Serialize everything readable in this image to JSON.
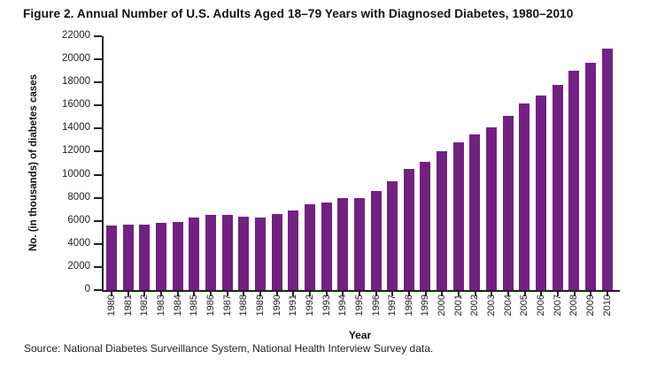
{
  "title": "Figure 2. Annual Number of U.S. Adults Aged 18–79 Years with Diagnosed Diabetes, 1980–2010",
  "source": "Source: National Diabetes Surveillance System, National Health Interview Survey data.",
  "colors": {
    "bar": "#722182",
    "axis": "#231f20",
    "background": "#ffffff"
  },
  "chart_data": {
    "type": "bar",
    "title": "Figure 2. Annual Number of U.S. Adults Aged 18–79 Years with Diagnosed Diabetes, 1980–2010",
    "xlabel": "Year",
    "ylabel": "No. (in thousands) of diabetes cases",
    "ylim": [
      0,
      22000
    ],
    "y_tick_step": 2000,
    "grid": false,
    "legend": "none",
    "categories": [
      "1980",
      "1981",
      "1982",
      "1983",
      "1984",
      "1985",
      "1986",
      "1987",
      "1988",
      "1989",
      "1990",
      "1991",
      "1992",
      "1993",
      "1994",
      "1995",
      "1996",
      "1997",
      "1998",
      "1999",
      "2000",
      "2001",
      "2002",
      "2003",
      "2004",
      "2005",
      "2006",
      "2007",
      "2008",
      "2009",
      "2010"
    ],
    "values": [
      5600,
      5700,
      5700,
      5800,
      5900,
      6300,
      6500,
      6500,
      6400,
      6300,
      6600,
      6900,
      7400,
      7600,
      8000,
      8000,
      8600,
      9400,
      10500,
      11100,
      12000,
      12800,
      13500,
      14100,
      15100,
      16200,
      16900,
      17800,
      19000,
      19700,
      20900
    ]
  }
}
